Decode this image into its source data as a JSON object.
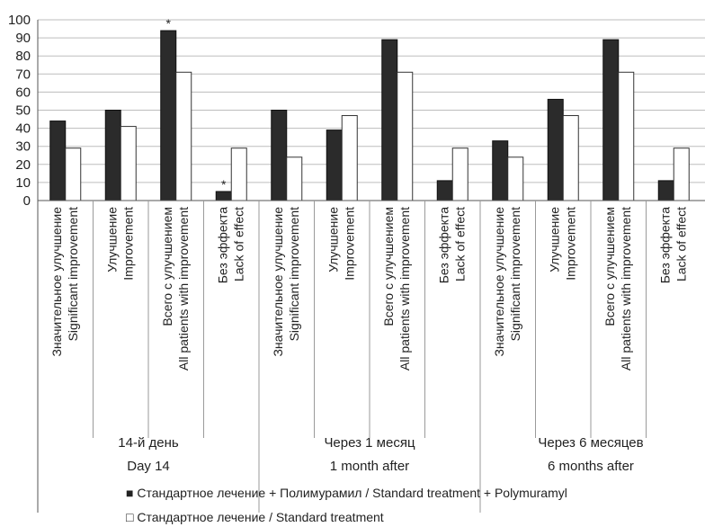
{
  "chart_data": {
    "type": "bar",
    "ylim": [
      0,
      100
    ],
    "yticks": [
      0,
      10,
      20,
      30,
      40,
      50,
      60,
      70,
      80,
      90,
      100
    ],
    "grid": true,
    "legend_position": "bottom",
    "colors": {
      "polymuramyl": "#2b2b2b",
      "standard": "#ffffff",
      "grid": "#bdbdbd",
      "axis": "#555555"
    },
    "periods": [
      {
        "label_ru": "14-й день",
        "label_en": "Day 14"
      },
      {
        "label_ru": "Через 1 месяц",
        "label_en": "1 month after"
      },
      {
        "label_ru": "Через 6 месяцев",
        "label_en": "6 months after"
      }
    ],
    "outcomes": [
      {
        "label_ru": "Значительное улучшение",
        "label_en": "Significant improvement"
      },
      {
        "label_ru": "Улучшение",
        "label_en": "Improvement"
      },
      {
        "label_ru": "Всего с улучшением",
        "label_en": "All patients with improvement"
      },
      {
        "label_ru": "Без эффекта",
        "label_en": "Lack of effect"
      }
    ],
    "series": [
      {
        "key": "polymuramyl",
        "legend": "Стандартное лечение + Полимурамил / Standard treatment + Polymuramyl",
        "values": [
          44,
          50,
          94,
          5,
          50,
          39,
          89,
          11,
          33,
          56,
          89,
          11
        ]
      },
      {
        "key": "standard",
        "legend": "Стандартное лечение / Standard treatment",
        "values": [
          29,
          41,
          71,
          29,
          24,
          47,
          71,
          29,
          24,
          47,
          71,
          29
        ]
      }
    ],
    "annotations": [
      {
        "text": "*",
        "group_index": 2,
        "series": "polymuramyl"
      },
      {
        "text": "*",
        "group_index": 3,
        "series": "polymuramyl"
      }
    ],
    "legend_markers": {
      "polymuramyl": "■",
      "standard": "□"
    }
  }
}
